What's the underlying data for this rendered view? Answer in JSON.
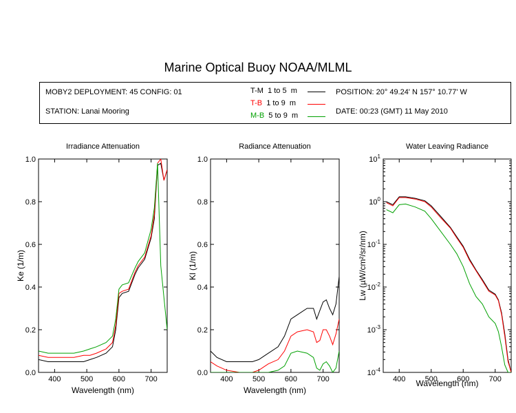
{
  "title": "Marine Optical Buoy NOAA/MLML",
  "info": {
    "deployment": "MOBY2 DEPLOYMENT: 45 CONFIG: 01",
    "station": "STATION: Lanai Mooring",
    "position": "POSITION: 20° 49.24' N   157° 10.77' W",
    "date": "DATE: 00:23 (GMT) 11 May 2010"
  },
  "legend": [
    {
      "code": "T-M",
      "range": "1 to 5",
      "unit": "m",
      "color": "#000000"
    },
    {
      "code": "T-B",
      "range": "1 to 9",
      "unit": "m",
      "color": "#ff0000"
    },
    {
      "code": "M-B",
      "range": "5 to 9",
      "unit": "m",
      "color": "#00a000"
    }
  ],
  "chart_data": [
    {
      "type": "line",
      "title": "Irradiance Attenuation",
      "xlabel": "Wavelength (nm)",
      "ylabel": "Ke  (1/m)",
      "xlim": [
        350,
        750
      ],
      "ylim": [
        0,
        1.0
      ],
      "xticks": [
        400,
        500,
        600,
        700
      ],
      "xtick_labels": [
        "400",
        "500",
        "600",
        "700"
      ],
      "yticks": [
        0,
        0.2,
        0.4,
        0.6,
        0.8,
        1.0
      ],
      "ytick_labels": [
        "0.0",
        "0.2",
        "0.4",
        "0.6",
        "0.8",
        "1.0"
      ],
      "x": [
        350,
        380,
        420,
        460,
        490,
        510,
        530,
        560,
        580,
        590,
        600,
        610,
        630,
        650,
        660,
        680,
        700,
        710,
        720,
        730,
        740,
        750
      ],
      "series": [
        {
          "name": "T-M",
          "color": "#000000",
          "values": [
            0.06,
            0.05,
            0.05,
            0.05,
            0.05,
            0.06,
            0.07,
            0.09,
            0.12,
            0.2,
            0.35,
            0.37,
            0.38,
            0.46,
            0.49,
            0.53,
            0.63,
            0.72,
            0.97,
            0.98,
            0.9,
            0.95
          ]
        },
        {
          "name": "T-B",
          "color": "#ff0000",
          "values": [
            0.08,
            0.07,
            0.07,
            0.07,
            0.08,
            0.08,
            0.09,
            0.11,
            0.14,
            0.22,
            0.37,
            0.38,
            0.39,
            0.47,
            0.5,
            0.54,
            0.64,
            0.74,
            0.98,
            1.0,
            0.9,
            0.95
          ]
        },
        {
          "name": "M-B",
          "color": "#00a000",
          "values": [
            0.1,
            0.09,
            0.09,
            0.09,
            0.1,
            0.11,
            0.12,
            0.14,
            0.17,
            0.25,
            0.39,
            0.41,
            0.42,
            0.49,
            0.52,
            0.56,
            0.67,
            0.77,
            0.98,
            0.5,
            0.35,
            0.2
          ]
        }
      ]
    },
    {
      "type": "line",
      "title": "Radiance Attenuation",
      "xlabel": "Wavelength (nm)",
      "ylabel": "Kl  (1/m)",
      "xlim": [
        350,
        750
      ],
      "ylim": [
        0,
        1.0
      ],
      "xticks": [
        400,
        500,
        600,
        700
      ],
      "xtick_labels": [
        "400",
        "500",
        "600",
        "700"
      ],
      "yticks": [
        0,
        0.2,
        0.4,
        0.6,
        0.8,
        1.0
      ],
      "ytick_labels": [
        "0.0",
        "0.2",
        "0.4",
        "0.6",
        "0.8",
        "1.0"
      ],
      "x": [
        350,
        370,
        400,
        440,
        480,
        500,
        530,
        560,
        580,
        600,
        620,
        650,
        670,
        680,
        690,
        700,
        710,
        720,
        730,
        740,
        750
      ],
      "series": [
        {
          "name": "T-M",
          "color": "#000000",
          "values": [
            0.1,
            0.07,
            0.05,
            0.05,
            0.05,
            0.06,
            0.09,
            0.12,
            0.17,
            0.25,
            0.27,
            0.3,
            0.3,
            0.25,
            0.29,
            0.33,
            0.34,
            0.3,
            0.27,
            0.32,
            0.45
          ]
        },
        {
          "name": "T-B",
          "color": "#ff0000",
          "values": [
            0.05,
            0.03,
            0.01,
            0.0,
            0.0,
            0.01,
            0.04,
            0.06,
            0.1,
            0.17,
            0.19,
            0.2,
            0.19,
            0.14,
            0.15,
            0.2,
            0.2,
            0.17,
            0.13,
            0.18,
            0.25
          ]
        },
        {
          "name": "M-B",
          "color": "#00a000",
          "values": [
            0.0,
            0.0,
            0.0,
            0.0,
            0.0,
            0.0,
            0.0,
            0.01,
            0.03,
            0.09,
            0.1,
            0.09,
            0.07,
            0.02,
            0.01,
            0.04,
            0.05,
            0.03,
            0.0,
            0.02,
            0.1
          ]
        }
      ]
    },
    {
      "type": "line",
      "title": "Water Leaving Radiance",
      "xlabel": "Wavelength (nm)",
      "ylabel": "Lw  (µW/cm²/sr/nm)",
      "yscale": "log",
      "xlim": [
        350,
        750
      ],
      "ylim": [
        0.0001,
        10
      ],
      "xticks": [
        400,
        500,
        600,
        700
      ],
      "xtick_labels": [
        "400",
        "500",
        "600",
        "700"
      ],
      "yticks": [
        0.0001,
        0.001,
        0.01,
        0.1,
        1,
        10
      ],
      "ytick_labels": [
        [
          "10",
          "-4"
        ],
        [
          "10",
          "-3"
        ],
        [
          "10",
          "-2"
        ],
        [
          "10",
          "-1"
        ],
        [
          "10",
          "0"
        ],
        [
          "10",
          "1"
        ]
      ],
      "x": [
        360,
        380,
        400,
        420,
        450,
        480,
        500,
        530,
        560,
        580,
        600,
        620,
        640,
        660,
        680,
        700,
        710,
        720,
        730,
        740,
        750
      ],
      "series": [
        {
          "name": "T-M",
          "color": "#000000",
          "values": [
            1.0,
            0.85,
            1.3,
            1.3,
            1.2,
            1.05,
            0.8,
            0.45,
            0.25,
            0.15,
            0.09,
            0.045,
            0.025,
            0.015,
            0.0085,
            0.0068,
            0.005,
            0.0025,
            0.0008,
            0.0002,
            0.0001
          ]
        },
        {
          "name": "T-B",
          "color": "#ff0000",
          "values": [
            0.95,
            0.8,
            1.25,
            1.25,
            1.15,
            1.0,
            0.75,
            0.42,
            0.24,
            0.14,
            0.085,
            0.042,
            0.024,
            0.014,
            0.008,
            0.0065,
            0.0048,
            0.0023,
            0.0007,
            0.00018,
            0.0001
          ]
        },
        {
          "name": "M-B",
          "color": "#00a000",
          "values": [
            0.65,
            0.55,
            0.85,
            0.88,
            0.75,
            0.6,
            0.4,
            0.2,
            0.1,
            0.06,
            0.03,
            0.012,
            0.006,
            0.004,
            0.002,
            0.0014,
            0.0009,
            0.0004,
            0.00015,
            0.0001,
            0.0001
          ]
        }
      ]
    }
  ]
}
